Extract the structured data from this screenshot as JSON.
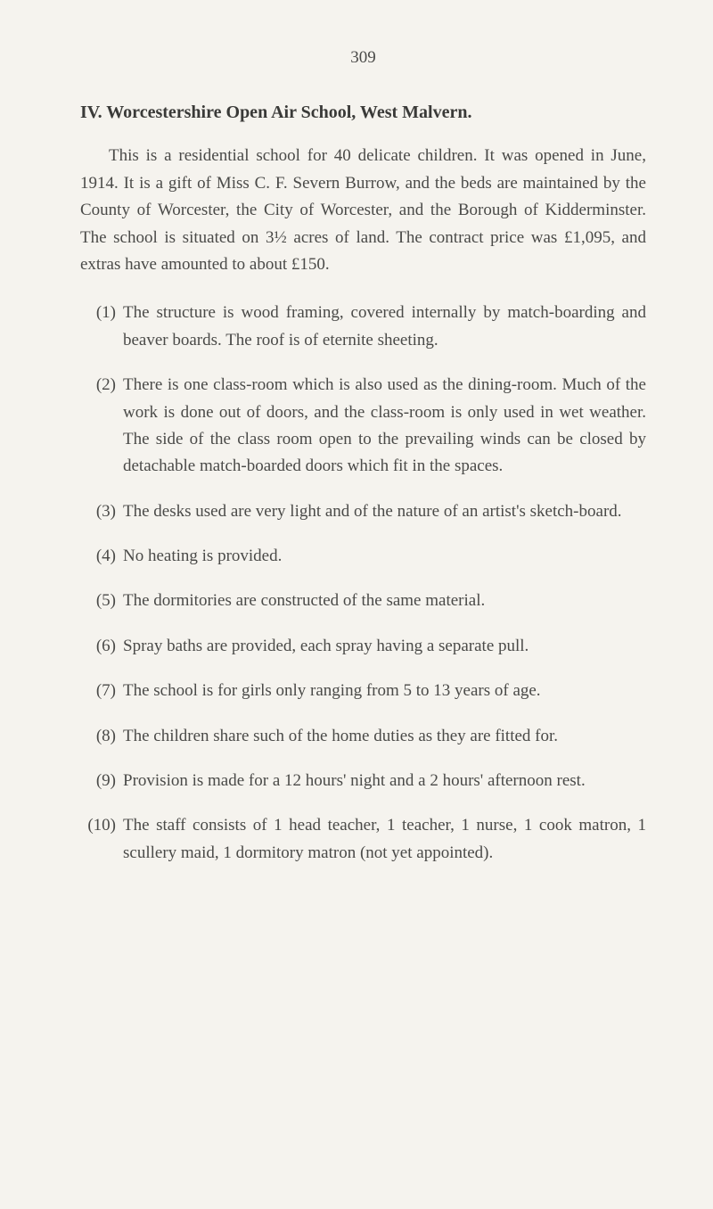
{
  "page_number": "309",
  "heading": "IV.  Worcestershire Open Air School, West Malvern.",
  "intro": "This is a residential school for 40 delicate children. It was opened in June, 1914. It is a gift of Miss C. F. Severn Burrow, and the beds are maintained by the County of Worcester, the City of Worcester, and the Borough of Kidderminster. The school is situated on 3½ acres of land. The contract price was £1,095, and extras have amounted to about £150.",
  "items": [
    {
      "num": "(1)",
      "text": "The structure is wood framing, covered internally by match-boarding and beaver boards. The roof is of eternite sheeting."
    },
    {
      "num": "(2)",
      "text": "There is one class-room which is also used as the dining-room. Much of the work is done out of doors, and the class-room is only used in wet weather. The side of the class room open to the prevailing winds can be closed by detachable match-boarded doors which fit in the spaces."
    },
    {
      "num": "(3)",
      "text": "The desks used are very light and of the nature of an artist's sketch-board."
    },
    {
      "num": "(4)",
      "text": "No heating is provided."
    },
    {
      "num": "(5)",
      "text": "The dormitories are constructed of the same material."
    },
    {
      "num": "(6)",
      "text": "Spray baths are provided, each spray having a separate pull."
    },
    {
      "num": "(7)",
      "text": "The school is for girls only ranging from 5 to 13 years of age."
    },
    {
      "num": "(8)",
      "text": "The children share such of the home duties as they are fitted for."
    },
    {
      "num": "(9)",
      "text": "Provision is made for a 12 hours' night and a 2 hours' afternoon rest."
    },
    {
      "num": "(10)",
      "text": "The staff consists of 1 head teacher, 1 teacher, 1 nurse, 1 cook matron, 1 scullery maid, 1 dormitory matron (not yet appointed)."
    }
  ]
}
